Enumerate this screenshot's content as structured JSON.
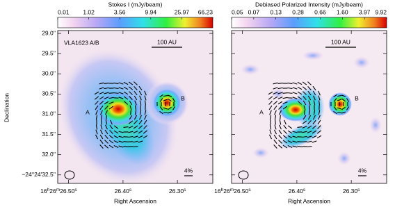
{
  "chart_data": [
    {
      "type": "image",
      "title": "Stokes I (mJy/beam)",
      "colorbar_labels": [
        "0.01",
        "1.02",
        "3.56",
        "9.94",
        "25.97",
        "66.23"
      ],
      "ylabel": "Declination",
      "xlabel": "Right Ascension",
      "ylim": [
        32.71,
        28.93
      ],
      "yticks": [
        {
          "value": 29.0,
          "label": "29.0''"
        },
        {
          "value": 29.5,
          "label": "29.5''"
        },
        {
          "value": 30.0,
          "label": "30.0''"
        },
        {
          "value": 30.5,
          "label": "30.5''"
        },
        {
          "value": 31.0,
          "label": "31.0''"
        },
        {
          "value": 31.5,
          "label": "31.5''"
        },
        {
          "value": 32.0,
          "label": "32.0''"
        },
        {
          "value": 32.5,
          "label": "−24°24'32.5''"
        }
      ],
      "xlim": [
        26.52,
        26.235
      ],
      "xticks": [
        {
          "value": 26.5,
          "label": "16h26m26.50s"
        },
        {
          "value": 26.4,
          "label": "26.40s"
        },
        {
          "value": 26.3,
          "label": "26.30s"
        }
      ],
      "source_label": "VLA1623 A/B",
      "scale_bar": "100 AU",
      "pol_scale": "4%",
      "components": [
        "A",
        "B"
      ]
    },
    {
      "type": "image",
      "title": "Debiased Polarized Intensity (mJy/beam)",
      "colorbar_labels": [
        "0.05",
        "0.07",
        "0.13",
        "0.28",
        "0.66",
        "1.60",
        "3.97",
        "9.92"
      ],
      "xlabel": "Right Ascension",
      "ylim": [
        32.71,
        28.93
      ],
      "yticks": [
        29.0,
        29.5,
        30.0,
        30.5,
        31.0,
        31.5,
        32.0,
        32.5
      ],
      "xlim": [
        26.52,
        26.235
      ],
      "xticks": [
        {
          "value": 26.5,
          "label": "16h26m26.50s"
        },
        {
          "value": 26.4,
          "label": "26.40s"
        },
        {
          "value": 26.3,
          "label": "26.30s"
        }
      ],
      "scale_bar": "100 AU",
      "pol_scale": "4%",
      "components": [
        "A",
        "B"
      ]
    }
  ]
}
